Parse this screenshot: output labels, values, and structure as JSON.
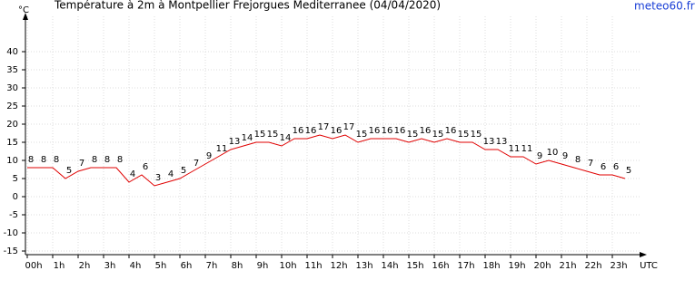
{
  "chart_data": {
    "type": "line",
    "title": "Température à 2m à Montpellier Frejorgues Mediterranee (04/04/2020)",
    "source": "meteo60.fr",
    "y_label": "°C",
    "x_label": "UTC",
    "x": [
      0,
      0.5,
      1,
      1.5,
      2,
      2.5,
      3,
      3.5,
      4,
      4.5,
      5,
      5.5,
      6,
      6.5,
      7,
      7.5,
      8,
      8.5,
      9,
      9.5,
      10,
      10.5,
      11,
      11.5,
      12,
      12.5,
      13,
      13.5,
      14,
      14.5,
      15,
      15.5,
      16,
      16.5,
      17,
      17.5,
      18,
      18.5,
      19,
      19.5,
      20,
      20.5,
      21,
      21.5,
      22,
      22.5,
      23,
      23.5
    ],
    "series": [
      {
        "name": "Température",
        "color": "#e00000",
        "values": [
          8,
          8,
          8,
          5,
          7,
          8,
          8,
          8,
          4,
          6,
          3,
          4,
          5,
          7,
          9,
          11,
          13,
          14,
          15,
          15,
          14,
          16,
          16,
          17,
          16,
          17,
          15,
          16,
          16,
          16,
          15,
          16,
          15,
          16,
          15,
          15,
          13,
          13,
          11,
          11,
          9,
          10,
          9,
          8,
          7,
          6,
          6,
          5
        ]
      }
    ],
    "xlim": [
      0,
      24
    ],
    "xticks": [
      {
        "value": 0,
        "label": "00h"
      },
      {
        "value": 1,
        "label": "1h"
      },
      {
        "value": 2,
        "label": "2h"
      },
      {
        "value": 3,
        "label": "3h"
      },
      {
        "value": 4,
        "label": "4h"
      },
      {
        "value": 5,
        "label": "5h"
      },
      {
        "value": 6,
        "label": "6h"
      },
      {
        "value": 7,
        "label": "7h"
      },
      {
        "value": 8,
        "label": "8h"
      },
      {
        "value": 9,
        "label": "9h"
      },
      {
        "value": 10,
        "label": "10h"
      },
      {
        "value": 11,
        "label": "11h"
      },
      {
        "value": 12,
        "label": "12h"
      },
      {
        "value": 13,
        "label": "13h"
      },
      {
        "value": 14,
        "label": "14h"
      },
      {
        "value": 15,
        "label": "15h"
      },
      {
        "value": 16,
        "label": "16h"
      },
      {
        "value": 17,
        "label": "17h"
      },
      {
        "value": 18,
        "label": "18h"
      },
      {
        "value": 19,
        "label": "19h"
      },
      {
        "value": 20,
        "label": "20h"
      },
      {
        "value": 21,
        "label": "21h"
      },
      {
        "value": 22,
        "label": "22h"
      },
      {
        "value": 23,
        "label": "23h"
      }
    ],
    "ylim": [
      -16,
      48
    ],
    "yticks": [
      -15,
      -10,
      -5,
      0,
      5,
      10,
      15,
      20,
      25,
      30,
      35,
      40
    ],
    "grid": true
  }
}
